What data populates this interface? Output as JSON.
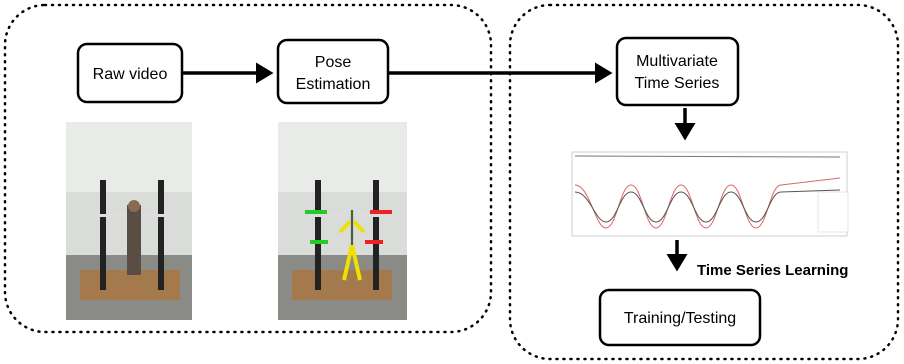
{
  "nodes": [
    {
      "lines": [
        "Raw video"
      ]
    },
    {
      "lines": [
        "Pose",
        "Estimation"
      ]
    },
    {
      "lines": [
        "Multivariate",
        "Time Series"
      ]
    },
    {
      "lines": [
        "Training/Testing"
      ]
    }
  ],
  "edge_labels": [
    "Time Series Learning"
  ]
}
